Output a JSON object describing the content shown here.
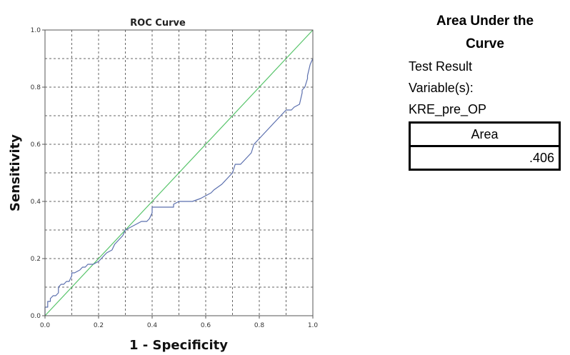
{
  "chart_data": {
    "type": "line",
    "title": "ROC Curve",
    "xlabel": "1 - Specificity",
    "ylabel": "Sensitivity",
    "xlim": [
      0.0,
      1.0
    ],
    "ylim": [
      0.0,
      1.0
    ],
    "xticks": [
      "0.0",
      "0.2",
      "0.4",
      "0.6",
      "0.8",
      "1.0"
    ],
    "yticks": [
      "0.0",
      "0.2",
      "0.4",
      "0.6",
      "0.8",
      "1.0"
    ],
    "grid": true,
    "series": [
      {
        "color": "#5b6fae",
        "x": [
          0.0,
          0.0,
          0.01,
          0.01,
          0.02,
          0.02,
          0.03,
          0.04,
          0.05,
          0.05,
          0.06,
          0.07,
          0.08,
          0.09,
          0.1,
          0.1,
          0.11,
          0.13,
          0.14,
          0.15,
          0.16,
          0.18,
          0.2,
          0.21,
          0.22,
          0.23,
          0.25,
          0.26,
          0.28,
          0.29,
          0.3,
          0.32,
          0.34,
          0.36,
          0.38,
          0.39,
          0.4,
          0.4,
          0.43,
          0.48,
          0.48,
          0.5,
          0.53,
          0.55,
          0.58,
          0.6,
          0.62,
          0.63,
          0.66,
          0.68,
          0.7,
          0.71,
          0.73,
          0.75,
          0.77,
          0.78,
          0.8,
          0.81,
          0.82,
          0.84,
          0.86,
          0.88,
          0.9,
          0.92,
          0.93,
          0.95,
          0.96,
          0.96,
          0.97,
          0.98,
          0.98,
          0.99,
          1.0
        ],
        "y": [
          0.0,
          0.03,
          0.03,
          0.05,
          0.05,
          0.06,
          0.07,
          0.07,
          0.08,
          0.1,
          0.11,
          0.11,
          0.12,
          0.12,
          0.14,
          0.15,
          0.15,
          0.16,
          0.17,
          0.17,
          0.18,
          0.18,
          0.19,
          0.2,
          0.21,
          0.22,
          0.23,
          0.25,
          0.27,
          0.28,
          0.3,
          0.31,
          0.32,
          0.33,
          0.33,
          0.34,
          0.36,
          0.38,
          0.38,
          0.38,
          0.39,
          0.4,
          0.4,
          0.4,
          0.41,
          0.42,
          0.43,
          0.44,
          0.46,
          0.48,
          0.5,
          0.53,
          0.53,
          0.55,
          0.57,
          0.6,
          0.62,
          0.63,
          0.64,
          0.66,
          0.68,
          0.7,
          0.72,
          0.72,
          0.73,
          0.74,
          0.78,
          0.79,
          0.8,
          0.83,
          0.84,
          0.88,
          0.9
        ]
      },
      {
        "color": "#57c46a",
        "x": [
          0.0,
          1.0
        ],
        "y": [
          0.0,
          1.0
        ]
      }
    ]
  },
  "auc": {
    "title_line1": "Area Under the",
    "title_line2": "Curve",
    "line1": "Test Result",
    "line2": "Variable(s):",
    "line3": "KRE_pre_OP",
    "column_header": "Area",
    "area_value": ".406"
  }
}
